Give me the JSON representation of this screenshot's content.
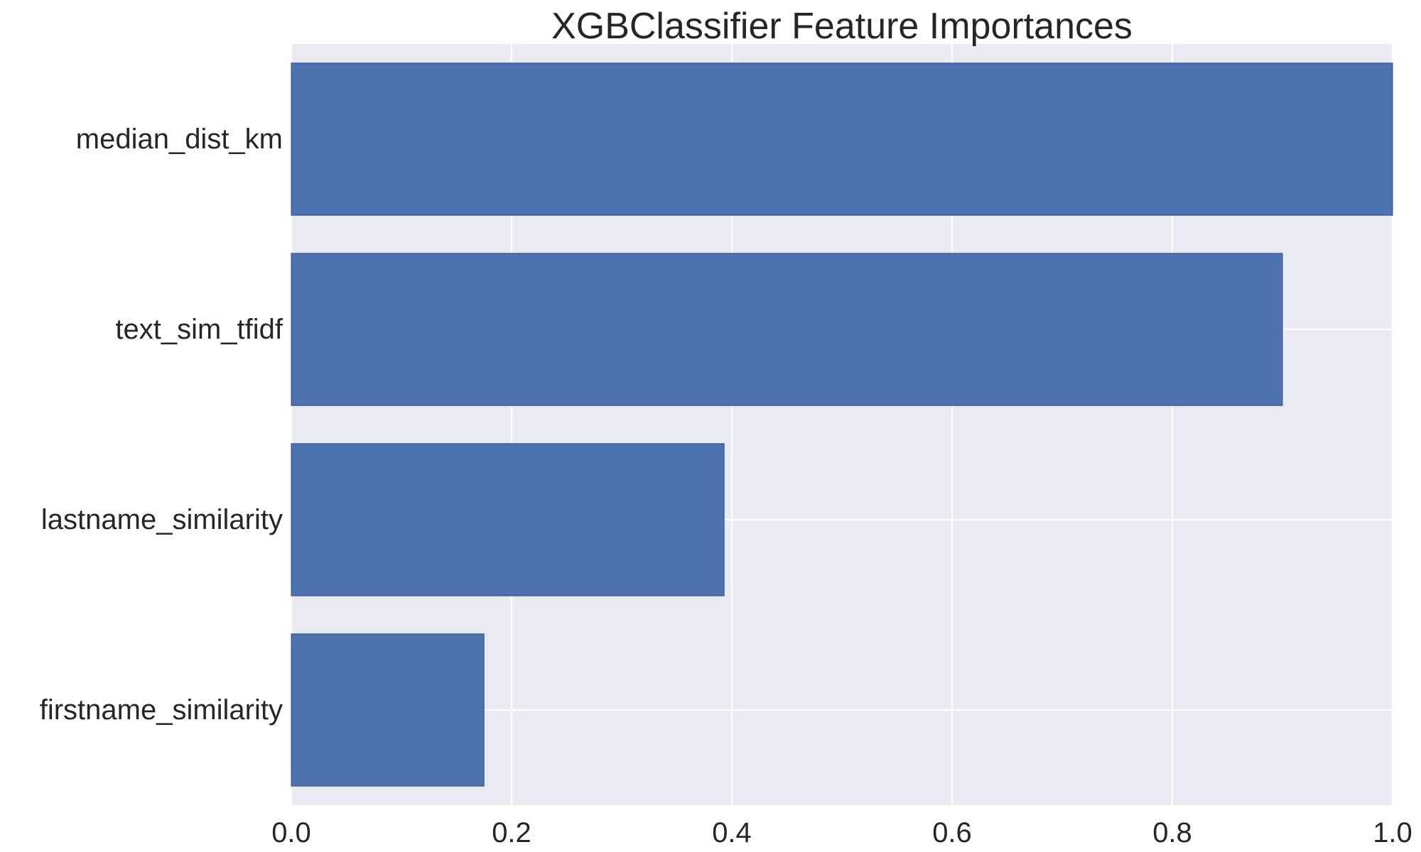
{
  "chart_data": {
    "type": "bar",
    "orientation": "horizontal",
    "title": "XGBClassifier Feature Importances",
    "xlabel": "",
    "ylabel": "",
    "categories": [
      "median_dist_km",
      "text_sim_tfidf",
      "lastname_similarity",
      "firstname_similarity"
    ],
    "values": [
      1.0,
      0.9,
      0.393,
      0.175
    ],
    "xlim": [
      0,
      1.0
    ],
    "xticks": [
      "0.0",
      "0.2",
      "0.4",
      "0.6",
      "0.8",
      "1.0"
    ],
    "xtick_values": [
      0,
      0.2,
      0.4,
      0.6,
      0.8,
      1.0
    ],
    "grid": true,
    "legend": "none"
  },
  "colors": {
    "bar": "#4c72b0",
    "plot_background": "#eaeaf2",
    "grid": "#ffffff",
    "text": "#262626"
  }
}
